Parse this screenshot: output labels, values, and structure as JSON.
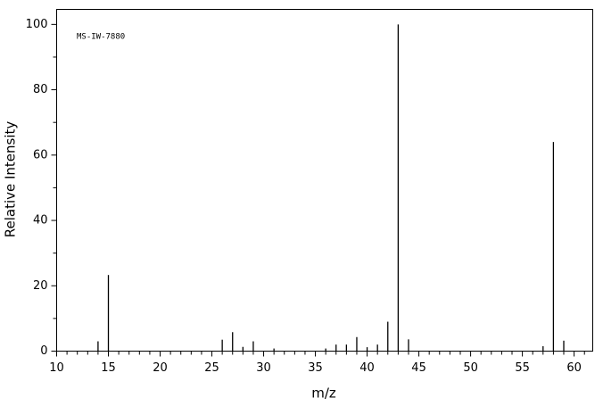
{
  "chart_data": {
    "type": "stem",
    "annotation": "MS-IW-7880",
    "xlabel": "m/z",
    "ylabel": "Relative Intensity",
    "x": [
      14,
      15,
      26,
      27,
      28,
      29,
      31,
      36,
      37,
      38,
      39,
      40,
      41,
      42,
      43,
      44,
      57,
      58,
      59
    ],
    "values": [
      3,
      23.3,
      3.5,
      5.8,
      1.3,
      3,
      0.8,
      0.8,
      2,
      2,
      4.3,
      1.2,
      2,
      9,
      100,
      3.6,
      1.5,
      64,
      3.2
    ],
    "color": "#000000",
    "xlim": [
      10,
      61.8
    ],
    "ylim": [
      0,
      104.6
    ],
    "xticks": [
      10,
      15,
      20,
      25,
      30,
      35,
      40,
      45,
      50,
      55,
      60
    ],
    "xminorticks": [
      11,
      12,
      13,
      14,
      16,
      17,
      18,
      19,
      21,
      22,
      23,
      24,
      26,
      27,
      28,
      29,
      31,
      32,
      33,
      34,
      36,
      37,
      38,
      39,
      41,
      42,
      43,
      44,
      46,
      47,
      48,
      49,
      51,
      52,
      53,
      54,
      56,
      57,
      58,
      59,
      61
    ],
    "yticks": [
      0,
      20,
      40,
      60,
      80,
      100
    ],
    "yminorticks": [
      10,
      30,
      50,
      70,
      90
    ]
  }
}
